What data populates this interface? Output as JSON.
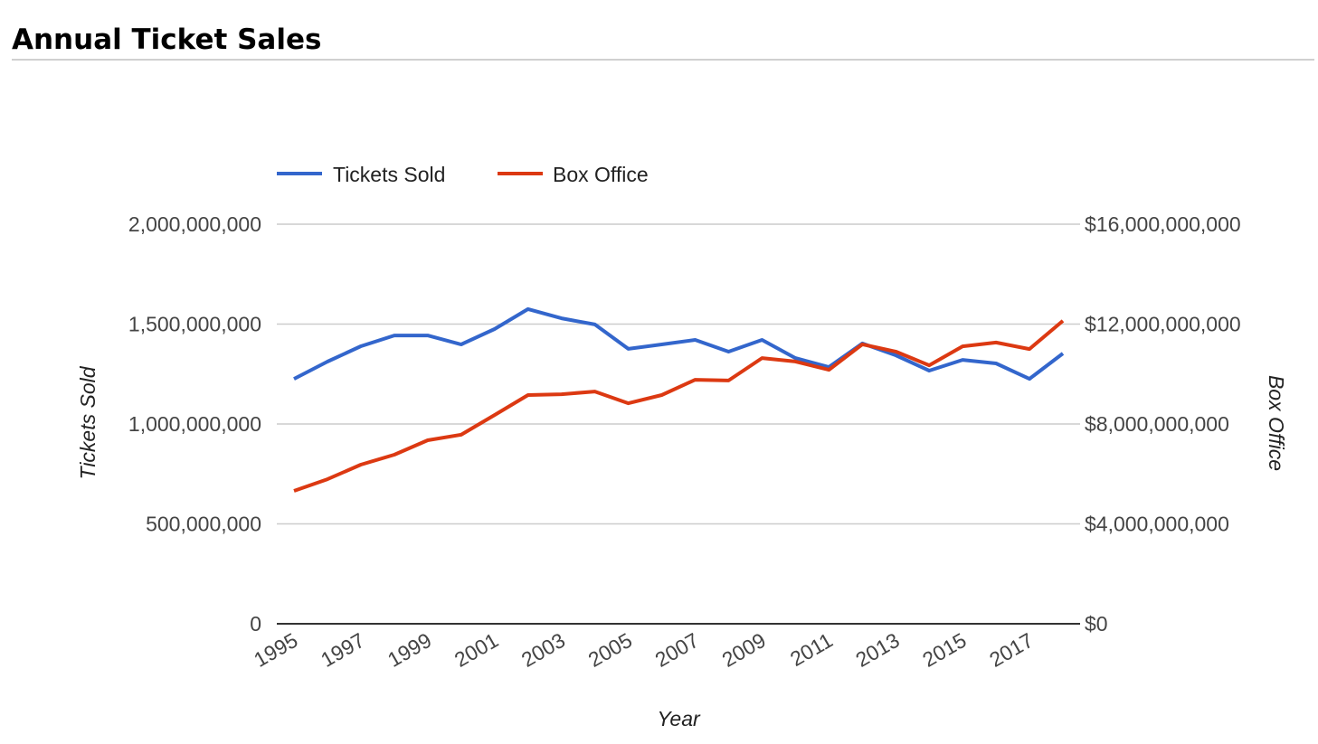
{
  "page": {
    "title": "Annual Ticket Sales"
  },
  "chart_data": {
    "type": "line",
    "title": "Annual Ticket Sales",
    "xlabel": "Year",
    "ylabel": "Tickets Sold",
    "y2label": "Box Office",
    "x": [
      1995,
      1996,
      1997,
      1998,
      1999,
      2000,
      2001,
      2002,
      2003,
      2004,
      2005,
      2006,
      2007,
      2008,
      2009,
      2010,
      2011,
      2012,
      2013,
      2014,
      2015,
      2016,
      2017,
      2018
    ],
    "x_tick_labels": [
      "1995",
      "1997",
      "1999",
      "2001",
      "2003",
      "2005",
      "2007",
      "2009",
      "2011",
      "2013",
      "2015",
      "2017"
    ],
    "ylim": [
      0,
      2000000000
    ],
    "y_tick_labels": [
      "0",
      "500,000,000",
      "1,000,000,000",
      "1,500,000,000",
      "2,000,000,000"
    ],
    "y_ticks": [
      0,
      500000000,
      1000000000,
      1500000000,
      2000000000
    ],
    "y2lim": [
      0,
      16000000000
    ],
    "y2_tick_labels": [
      "$0",
      "$4,000,000,000",
      "$8,000,000,000",
      "$12,000,000,000",
      "$16,000,000,000"
    ],
    "y2_ticks": [
      0,
      4000000000,
      8000000000,
      12000000000,
      16000000000
    ],
    "grid": true,
    "legend_position": "top-left",
    "series": [
      {
        "name": "Tickets Sold",
        "axis": "left",
        "color": "#3366cc",
        "values": [
          1226000000,
          1312000000,
          1389000000,
          1443000000,
          1443000000,
          1398000000,
          1475000000,
          1575000000,
          1529000000,
          1498000000,
          1376000000,
          1398000000,
          1421000000,
          1362000000,
          1421000000,
          1330000000,
          1285000000,
          1403000000,
          1344000000,
          1267000000,
          1321000000,
          1303000000,
          1226000000,
          1353000000
        ]
      },
      {
        "name": "Box Office",
        "axis": "right",
        "color": "#dc3912",
        "values": [
          5320000000,
          5790000000,
          6370000000,
          6770000000,
          7350000000,
          7570000000,
          8360000000,
          9160000000,
          9190000000,
          9300000000,
          8830000000,
          9160000000,
          9770000000,
          9740000000,
          10640000000,
          10500000000,
          10170000000,
          11190000000,
          10900000000,
          10350000000,
          11110000000,
          11260000000,
          11000000000,
          12130000000
        ]
      }
    ]
  }
}
